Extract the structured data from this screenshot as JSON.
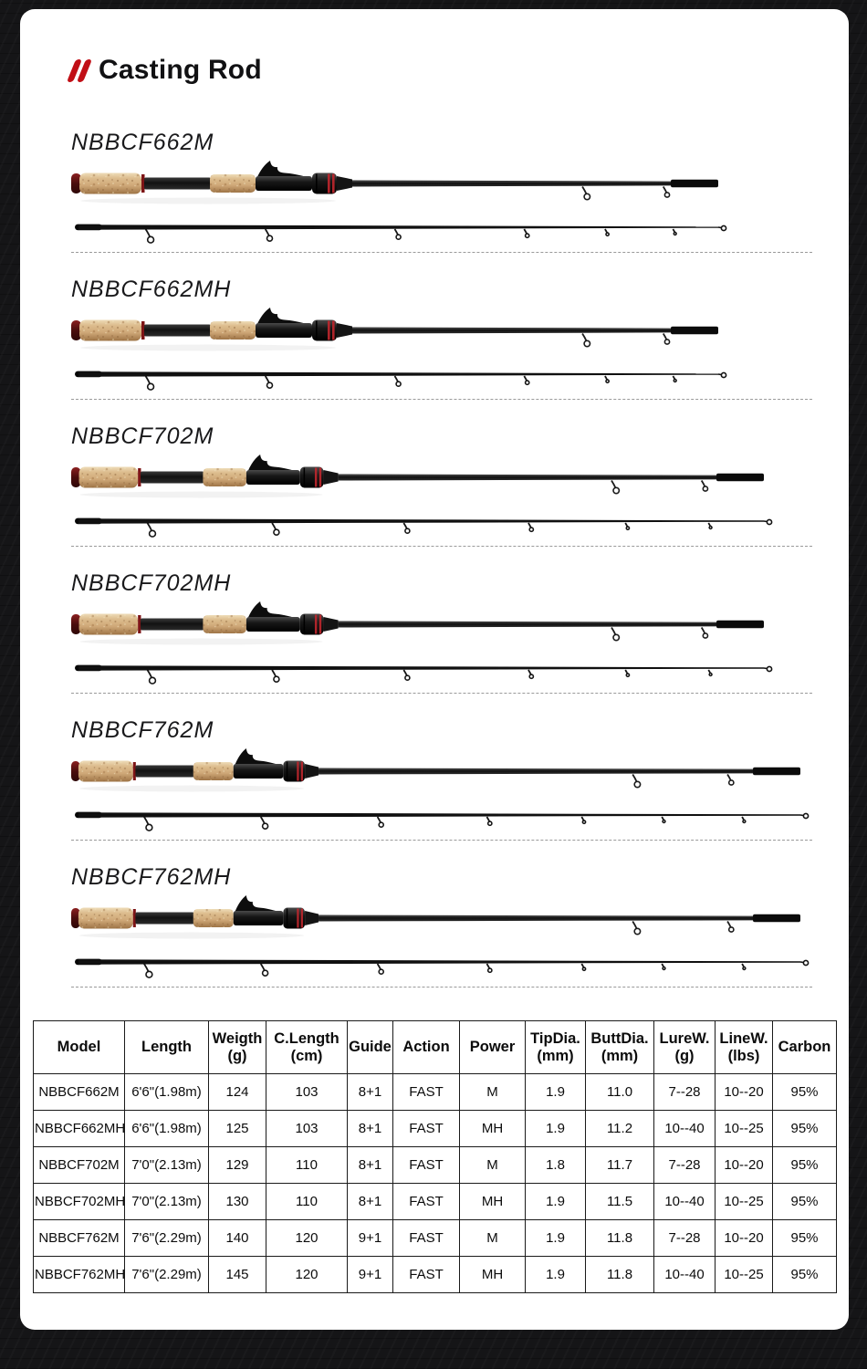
{
  "header": {
    "title_icon": "double-slash-icon",
    "title": "Casting Rod",
    "accent_color": "#c10f16"
  },
  "sections": [
    {
      "model": "NBBCF662M"
    },
    {
      "model": "NBBCF662MH"
    },
    {
      "model": "NBBCF702M"
    },
    {
      "model": "NBBCF702MH"
    },
    {
      "model": "NBBCF762M"
    },
    {
      "model": "NBBCF762MH"
    }
  ],
  "spec_table": {
    "headers": [
      "Model",
      "Length",
      "Weigth\n(g)",
      "C.Length\n(cm)",
      "Guide",
      "Action",
      "Power",
      "TipDia.\n(mm)",
      "ButtDia.\n(mm)",
      "LureW.\n(g)",
      "LineW.\n(lbs)",
      "Carbon"
    ],
    "rows": [
      [
        "NBBCF662M",
        "6'6\"(1.98m)",
        "124",
        "103",
        "8+1",
        "FAST",
        "M",
        "1.9",
        "11.0",
        "7--28",
        "10--20",
        "95%"
      ],
      [
        "NBBCF662MH",
        "6'6\"(1.98m)",
        "125",
        "103",
        "8+1",
        "FAST",
        "MH",
        "1.9",
        "11.2",
        "10--40",
        "10--25",
        "95%"
      ],
      [
        "NBBCF702M",
        "7'0\"(2.13m)",
        "129",
        "110",
        "8+1",
        "FAST",
        "M",
        "1.8",
        "11.7",
        "7--28",
        "10--20",
        "95%"
      ],
      [
        "NBBCF702MH",
        "7'0\"(2.13m)",
        "130",
        "110",
        "8+1",
        "FAST",
        "MH",
        "1.9",
        "11.5",
        "10--40",
        "10--25",
        "95%"
      ],
      [
        "NBBCF762M",
        "7'6\"(2.29m)",
        "140",
        "120",
        "9+1",
        "FAST",
        "M",
        "1.9",
        "11.8",
        "7--28",
        "10--20",
        "95%"
      ],
      [
        "NBBCF762MH",
        "7'6\"(2.29m)",
        "145",
        "120",
        "9+1",
        "FAST",
        "MH",
        "1.9",
        "11.8",
        "10--40",
        "10--25",
        "95%"
      ]
    ]
  }
}
